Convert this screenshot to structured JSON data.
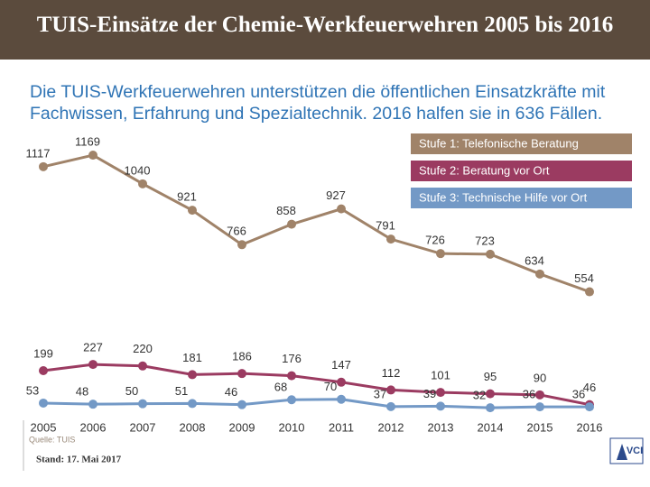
{
  "header": {
    "title": "TUIS-Einsätze der Chemie-Werkfeuerwehren 2005 bis 2016"
  },
  "chart_data": {
    "type": "line",
    "subtitle": "Die TUIS-Werkfeuerwehren unterstützen die öffentlichen Einsatzkräfte mit Fachwissen, Erfahrung und Spezialtechnik. 2016 halfen sie in 636 Fällen.",
    "x": [
      2005,
      2006,
      2007,
      2008,
      2009,
      2010,
      2011,
      2012,
      2013,
      2014,
      2015,
      2016
    ],
    "ylim": [
      0,
      1200
    ],
    "legend": "top-right",
    "series": [
      {
        "name": "Stufe 1: Telefonische Beratung",
        "color": "#a08369",
        "values": [
          1117,
          1169,
          1040,
          921,
          766,
          858,
          927,
          791,
          726,
          723,
          634,
          554
        ]
      },
      {
        "name": "Stufe 2: Beratung vor Ort",
        "color": "#9b3b61",
        "values": [
          199,
          227,
          220,
          181,
          186,
          176,
          147,
          112,
          101,
          95,
          90,
          46
        ]
      },
      {
        "name": "Stufe 3: Technische Hilfe vor Ort",
        "color": "#7399c6",
        "values": [
          53,
          48,
          50,
          51,
          46,
          68,
          70,
          37,
          39,
          32,
          36,
          36
        ]
      }
    ]
  },
  "footer": {
    "source": "Quelle: TUIS",
    "date": "Stand: 17. Mai 2017",
    "logo": "VCI"
  }
}
